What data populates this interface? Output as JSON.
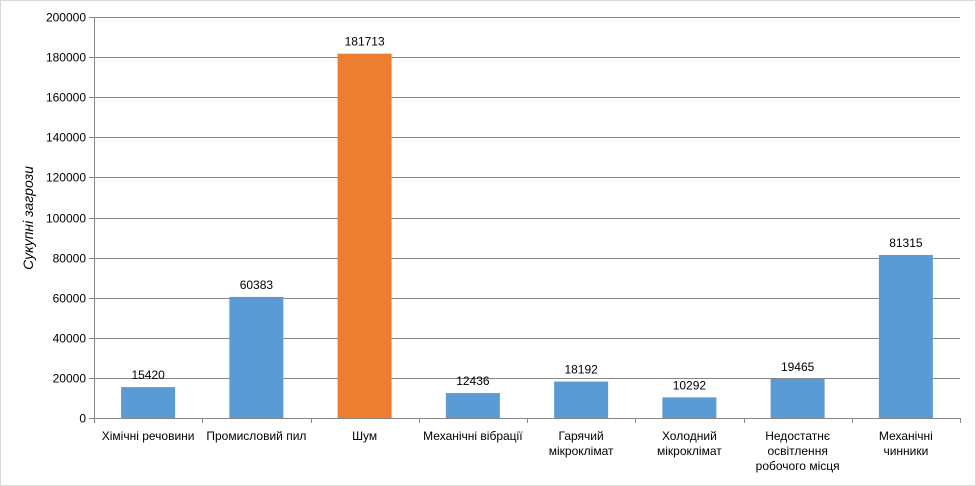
{
  "chart_data": {
    "type": "bar",
    "title": "",
    "xlabel": "",
    "ylabel": "Сукупні загрози",
    "categories": [
      [
        "Хімічні речовини"
      ],
      [
        "Промисловий пил"
      ],
      [
        "Шум"
      ],
      [
        "Механічні вібрації"
      ],
      [
        "Гарячий",
        "мікроклімат"
      ],
      [
        "Холодний",
        "мікроклімат"
      ],
      [
        "Недостатнє",
        "освітлення",
        "робочого місця"
      ],
      [
        "Механічні",
        "чинники"
      ]
    ],
    "values": [
      15420,
      60383,
      181713,
      12436,
      18192,
      10292,
      19465,
      81315
    ],
    "data_labels": [
      "15420",
      "60383",
      "181713",
      "12436",
      "18192",
      "10292",
      "19465",
      "81315"
    ],
    "ylim": [
      0,
      200000
    ],
    "yticks": [
      0,
      20000,
      40000,
      60000,
      80000,
      100000,
      120000,
      140000,
      160000,
      180000,
      200000
    ],
    "ytick_labels": [
      "0",
      "20000",
      "40000",
      "60000",
      "80000",
      "100000",
      "120000",
      "140000",
      "160000",
      "180000",
      "200000"
    ],
    "grid": true,
    "legend": "none",
    "colors": {
      "bar": "#5b9bd5",
      "highlight": "#ed7d31",
      "grid": "#868686",
      "axis": "#868686"
    },
    "highlight_index": 2
  }
}
